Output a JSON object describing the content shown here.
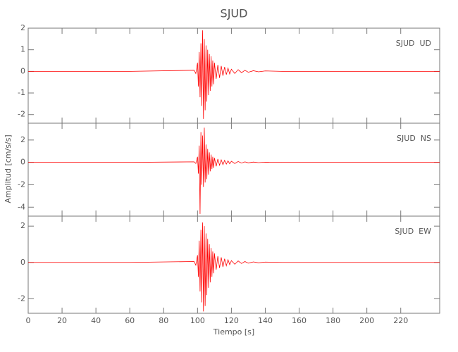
{
  "title": "SJUD",
  "x_label": "Tiempo [s]",
  "y_label": "Amplitud [cm/s/s]",
  "chart_data": [
    {
      "type": "line",
      "label": "SJUD  UD",
      "color": "#ff0000",
      "x": [
        0,
        60,
        98,
        99,
        100,
        100.5,
        101,
        101.5,
        102,
        102.5,
        103,
        103.5,
        104,
        104.5,
        105,
        105.5,
        106,
        106.5,
        107,
        107.5,
        108,
        108.5,
        109,
        109.5,
        110,
        111,
        112,
        113,
        114,
        115,
        116,
        117,
        118,
        119,
        120,
        122,
        124,
        126,
        128,
        130,
        133,
        136,
        140,
        150,
        243
      ],
      "values": [
        0,
        0,
        0.05,
        -0.1,
        0.4,
        -0.7,
        0.9,
        -1.2,
        1.3,
        -1.6,
        1.9,
        -2.2,
        1.5,
        -1.8,
        1.2,
        -1.4,
        1.0,
        -1.1,
        0.8,
        -0.9,
        0.7,
        -0.7,
        0.5,
        -0.6,
        0.4,
        -0.35,
        0.3,
        -0.3,
        0.25,
        -0.2,
        0.2,
        -0.15,
        0.15,
        -0.12,
        0.1,
        -0.1,
        0.08,
        -0.06,
        0.05,
        -0.04,
        0.03,
        -0.02,
        0.02,
        0,
        0
      ],
      "xlim": [
        0,
        243
      ],
      "xticks": [
        0,
        20,
        40,
        60,
        80,
        100,
        120,
        140,
        160,
        180,
        200,
        220
      ],
      "ylim": [
        -2.4,
        2
      ],
      "yticks": [
        -2,
        -1,
        0,
        1,
        2
      ]
    },
    {
      "type": "line",
      "label": "SJUD  NS",
      "color": "#ff0000",
      "x": [
        0,
        60,
        98,
        99,
        100,
        100.5,
        101,
        101.5,
        102,
        102.5,
        103,
        103.5,
        104,
        104.5,
        105,
        105.5,
        106,
        106.5,
        107,
        107.5,
        108,
        108.5,
        109,
        109.5,
        110,
        111,
        112,
        113,
        114,
        115,
        116,
        117,
        118,
        119,
        120,
        122,
        124,
        126,
        128,
        130,
        133,
        136,
        140,
        150,
        243
      ],
      "values": [
        0,
        0,
        0.05,
        -0.1,
        0.5,
        -1.0,
        1.5,
        -4.6,
        2.7,
        -2.0,
        2.4,
        -2.2,
        3.1,
        -1.8,
        1.6,
        -1.5,
        1.2,
        -1.1,
        0.9,
        -0.8,
        0.7,
        -0.6,
        0.5,
        -0.5,
        0.4,
        -0.35,
        0.3,
        -0.25,
        0.22,
        -0.2,
        0.18,
        -0.15,
        0.14,
        -0.12,
        0.1,
        -0.1,
        0.08,
        -0.06,
        0.05,
        -0.04,
        0.03,
        -0.02,
        0.02,
        0,
        0
      ],
      "xlim": [
        0,
        243
      ],
      "xticks": [
        0,
        20,
        40,
        60,
        80,
        100,
        120,
        140,
        160,
        180,
        200,
        220
      ],
      "ylim": [
        -4.8,
        3.5
      ],
      "yticks": [
        -4,
        -2,
        0,
        2
      ]
    },
    {
      "type": "line",
      "label": "SJUD  EW",
      "color": "#ff0000",
      "x": [
        0,
        60,
        98,
        99,
        100,
        100.5,
        101,
        101.5,
        102,
        102.5,
        103,
        103.5,
        104,
        104.5,
        105,
        105.5,
        106,
        106.5,
        107,
        107.5,
        108,
        108.5,
        109,
        109.5,
        110,
        111,
        112,
        113,
        114,
        115,
        116,
        117,
        118,
        119,
        120,
        122,
        124,
        126,
        128,
        130,
        133,
        136,
        140,
        150,
        243
      ],
      "values": [
        0,
        0,
        0.05,
        -0.15,
        0.4,
        -0.8,
        1.2,
        -1.6,
        1.8,
        -2.2,
        2.2,
        -2.7,
        2.0,
        -2.4,
        1.6,
        -1.8,
        1.3,
        -1.4,
        1.0,
        -1.1,
        0.8,
        -0.8,
        0.6,
        -0.6,
        0.5,
        -0.4,
        0.35,
        -0.3,
        0.28,
        -0.25,
        0.2,
        -0.18,
        0.15,
        -0.12,
        0.1,
        -0.1,
        0.08,
        -0.06,
        0.05,
        -0.04,
        0.03,
        -0.02,
        0.02,
        0,
        0
      ],
      "xlim": [
        0,
        243
      ],
      "xticks": [
        0,
        20,
        40,
        60,
        80,
        100,
        120,
        140,
        160,
        180,
        200,
        220
      ],
      "ylim": [
        -2.8,
        2.55
      ],
      "yticks": [
        -2,
        0,
        2
      ]
    }
  ]
}
